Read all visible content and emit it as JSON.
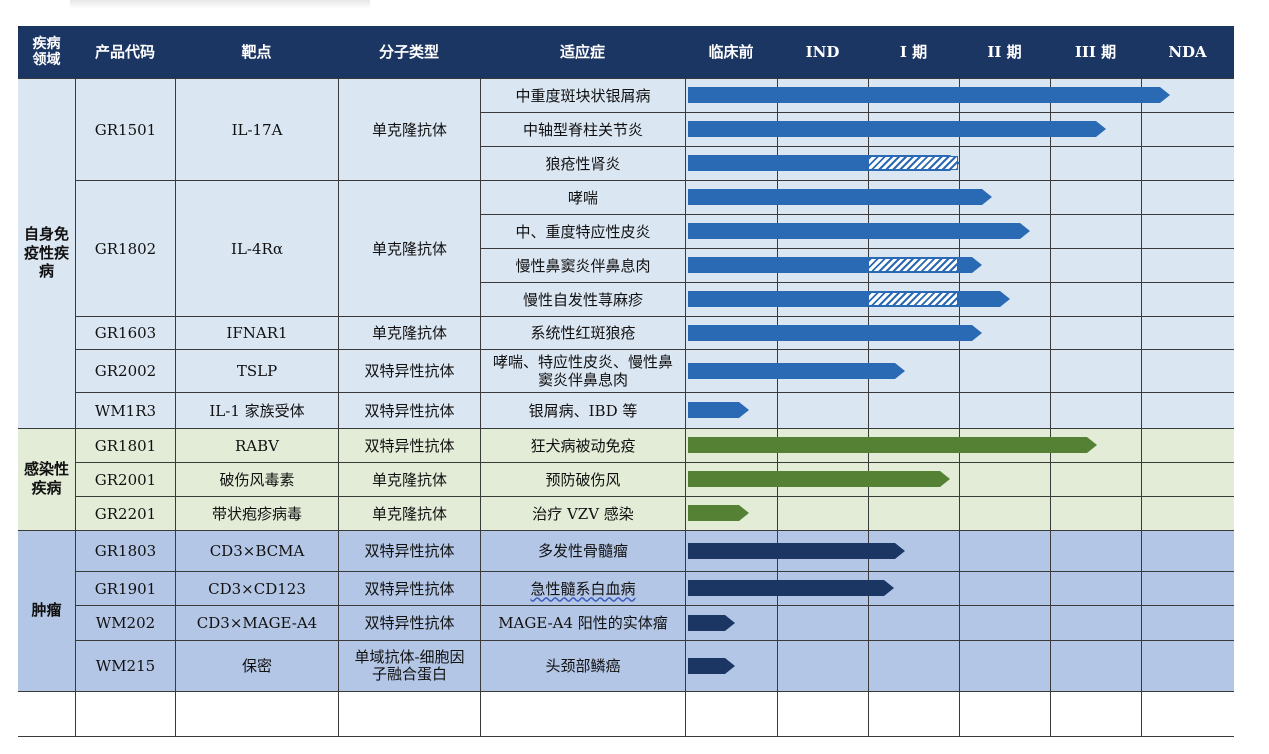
{
  "header": [
    "疾病领域",
    "产品代码",
    "靶点",
    "分子类型",
    "适应症",
    "临床前",
    "IND",
    "I 期",
    "II 期",
    "III 期",
    "NDA"
  ],
  "colors": {
    "header_bg": "#1c3664",
    "autoimmune_bg": "#dbe6f3",
    "infection_bg": "#e3ecd6",
    "oncology_bg": "#b4c6e6",
    "autoimmune_bar": "#2a69b3",
    "infection_bar": "#548133",
    "oncology_bar": "#1c3664"
  },
  "domains": [
    {
      "name": "自身免疫性疾病",
      "color": "autoimmune",
      "rows": 10
    },
    {
      "name": "感染性疾病",
      "color": "infection",
      "rows": 3
    },
    {
      "name": "肿瘤",
      "color": "oncology",
      "rows": 4
    }
  ],
  "products": [
    {
      "code": "GR1501",
      "target": "IL-17A",
      "molecule": "单克隆抗体",
      "rows": 3
    },
    {
      "code": "GR1802",
      "target": "IL-4Rα",
      "molecule": "单克隆抗体",
      "rows": 4
    },
    {
      "code": "GR1603",
      "target": "IFNAR1",
      "molecule": "单克隆抗体",
      "rows": 1
    },
    {
      "code": "GR2002",
      "target": "TSLP",
      "molecule": "双特异性抗体",
      "rows": 1
    },
    {
      "code": "WM1R3",
      "target": "IL-1 家族受体",
      "molecule": "双特异性抗体",
      "rows": 1
    },
    {
      "code": "GR1801",
      "target": "RABV",
      "molecule": "双特异性抗体",
      "rows": 1
    },
    {
      "code": "GR2001",
      "target": "破伤风毒素",
      "molecule": "单克隆抗体",
      "rows": 1
    },
    {
      "code": "GR2201",
      "target": "带状疱疹病毒",
      "molecule": "单克隆抗体",
      "rows": 1
    },
    {
      "code": "GR1803",
      "target": "CD3×BCMA",
      "molecule": "双特异性抗体",
      "rows": 1
    },
    {
      "code": "GR1901",
      "target": "CD3×CD123",
      "molecule": "双特异性抗体",
      "rows": 1
    },
    {
      "code": "WM202",
      "target": "CD3×MAGE-A4",
      "molecule": "双特异性抗体",
      "rows": 1
    },
    {
      "code": "WM215",
      "target": "保密",
      "molecule": "单域抗体-细胞因子融合蛋白",
      "rows": 1
    }
  ],
  "indications": [
    {
      "name": "中重度斑块状银屑病",
      "domain": 0,
      "progress": 5.3
    },
    {
      "name": "中轴型脊柱关节炎",
      "domain": 0,
      "progress": 4.6
    },
    {
      "name": "狼疮性肾炎",
      "domain": 0,
      "progress": 3.0,
      "hatch": [
        2.0,
        3.0
      ]
    },
    {
      "name": "哮喘",
      "domain": 0,
      "progress": 3.35
    },
    {
      "name": "中、重度特应性皮炎",
      "domain": 0,
      "progress": 3.77
    },
    {
      "name": "慢性鼻窦炎伴鼻息肉",
      "domain": 0,
      "progress": 3.25,
      "hatch": [
        2.0,
        3.0
      ]
    },
    {
      "name": "慢性自发性荨麻疹",
      "domain": 0,
      "progress": 3.55,
      "hatch": [
        2.0,
        3.0
      ]
    },
    {
      "name": "系统性红斑狼疮",
      "domain": 0,
      "progress": 3.25
    },
    {
      "name": "哮喘、特应性皮炎、慢性鼻窦炎伴鼻息肉",
      "domain": 0,
      "progress": 2.4
    },
    {
      "name": "银屑病、IBD 等",
      "domain": 0,
      "progress": 0.7
    },
    {
      "name": "狂犬病被动免疫",
      "domain": 1,
      "progress": 4.5
    },
    {
      "name": "预防破伤风",
      "domain": 1,
      "progress": 2.9
    },
    {
      "name": "治疗 VZV 感染",
      "domain": 1,
      "progress": 0.7
    },
    {
      "name": "多发性骨髓瘤",
      "domain": 2,
      "progress": 2.4
    },
    {
      "name": "急性髓系白血病",
      "domain": 2,
      "progress": 2.28
    },
    {
      "name": "MAGE-A4 阳性的实体瘤",
      "domain": 2,
      "progress": 0.55
    },
    {
      "name": "头颈部鳞癌",
      "domain": 2,
      "progress": 0.55
    }
  ]
}
